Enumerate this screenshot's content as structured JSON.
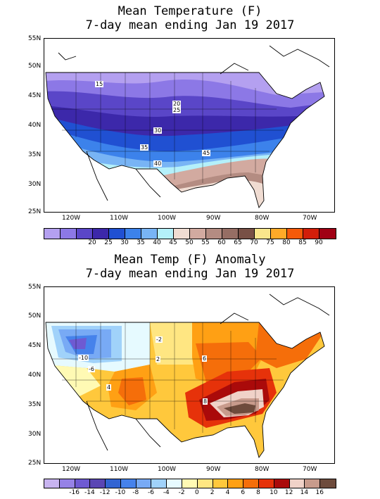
{
  "panel1": {
    "title_line1": "Mean Temperature (F)",
    "title_line2": "7-day mean ending Jan 19 2017",
    "lat_labels": [
      "55N",
      "50N",
      "45N",
      "40N",
      "35N",
      "30N",
      "25N"
    ],
    "lon_labels": [
      "120W",
      "110W",
      "100W",
      "90W",
      "80W",
      "70W"
    ],
    "contour_labels": [
      "15",
      "20",
      "25",
      "30",
      "35",
      "40",
      "45"
    ],
    "colorbar": {
      "colors": [
        "#b4a0f0",
        "#8c78e6",
        "#5a46c8",
        "#3c28aa",
        "#2050d2",
        "#3c82eb",
        "#78b4f5",
        "#b4f0fa",
        "#f0dcd2",
        "#d2aaa0",
        "#b48c82",
        "#966e64",
        "#785046",
        "#fae68c",
        "#ffaa28",
        "#f55a0a",
        "#d21e0a",
        "#a00014"
      ],
      "labels": [
        "20",
        "25",
        "30",
        "35",
        "40",
        "45",
        "50",
        "55",
        "60",
        "65",
        "70",
        "75",
        "80",
        "85",
        "90"
      ]
    }
  },
  "panel2": {
    "title_line1": "Mean Temp (F) Anomaly",
    "title_line2": "7-day mean ending Jan 19 2017",
    "lat_labels": [
      "55N",
      "50N",
      "45N",
      "40N",
      "35N",
      "30N",
      "25N"
    ],
    "lon_labels": [
      "120W",
      "110W",
      "100W",
      "90W",
      "80W",
      "70W"
    ],
    "contour_labels": [
      "-10",
      "-6",
      "-2",
      "2",
      "4",
      "6",
      "8"
    ],
    "colorbar": {
      "colors": [
        "#c8b4f0",
        "#9682e6",
        "#6e5ad2",
        "#5a46b4",
        "#3264d2",
        "#4682eb",
        "#78aaf5",
        "#a0d2fa",
        "#e6faff",
        "#fffab4",
        "#ffe682",
        "#ffc83c",
        "#ffa014",
        "#f56e0a",
        "#e6320a",
        "#aa0a0a",
        "#f0d2c8",
        "#c89b8c",
        "#6e4b3c"
      ],
      "labels": [
        "-16",
        "-14",
        "-12",
        "-10",
        "-8",
        "-6",
        "-4",
        "-2",
        "0",
        "2",
        "4",
        "6",
        "8",
        "10",
        "12",
        "14",
        "16"
      ]
    }
  }
}
